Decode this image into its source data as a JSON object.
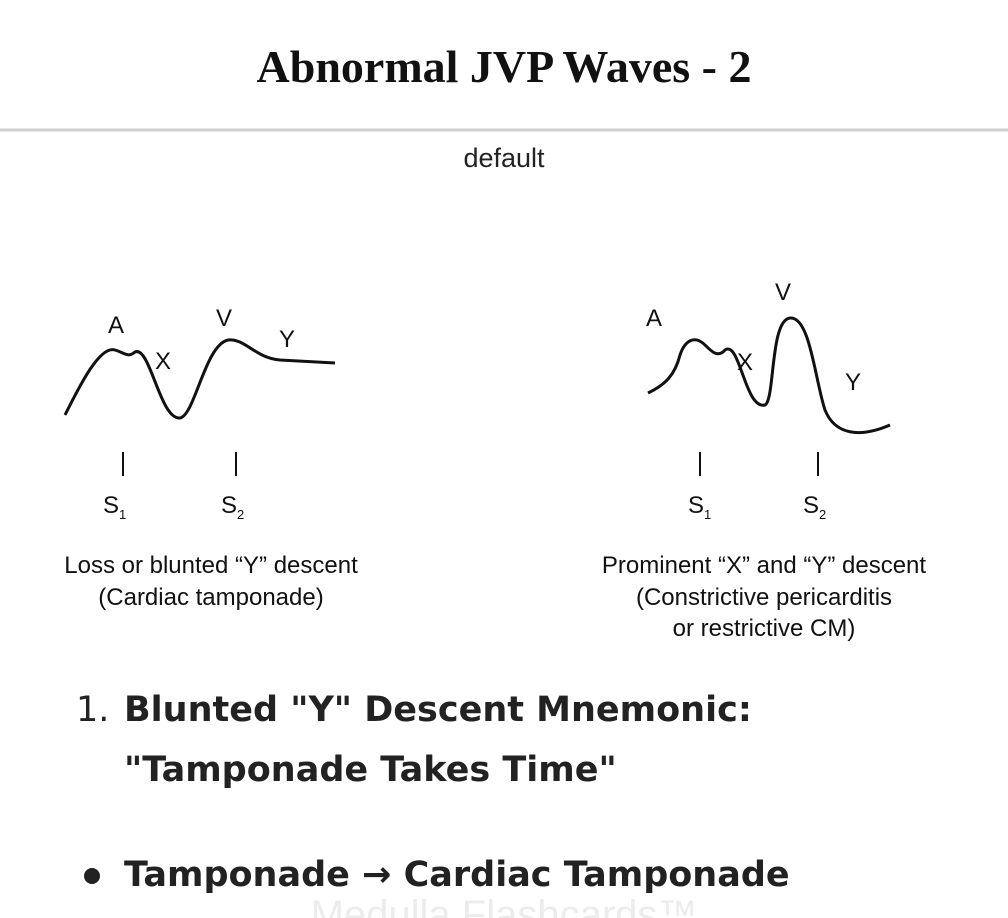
{
  "header": {
    "title": "Abnormal JVP Waves - 2"
  },
  "subtitle": "default",
  "figure": {
    "panels": [
      {
        "wave_labels": [
          "A",
          "X",
          "V",
          "Y"
        ],
        "markers": [
          {
            "letter": "S",
            "sub": "1"
          },
          {
            "letter": "S",
            "sub": "2"
          }
        ],
        "caption": [
          "Loss or blunted “Y” descent",
          "(Cardiac tamponade)"
        ]
      },
      {
        "wave_labels": [
          "A",
          "X",
          "V",
          "Y"
        ],
        "markers": [
          {
            "letter": "S",
            "sub": "1"
          },
          {
            "letter": "S",
            "sub": "2"
          }
        ],
        "caption": [
          "Prominent “X” and “Y” descent",
          "(Constrictive pericarditis",
          "or restrictive CM)"
        ]
      }
    ]
  },
  "list": {
    "numbered": [
      {
        "marker": "1.",
        "text": "Blunted \"Y\" Descent Mnemonic: \"Tamponade Takes Time\""
      }
    ],
    "bullets": [
      "Tamponade → Cardiac Tamponade"
    ]
  },
  "watermark": "Medulla Flashcards™"
}
